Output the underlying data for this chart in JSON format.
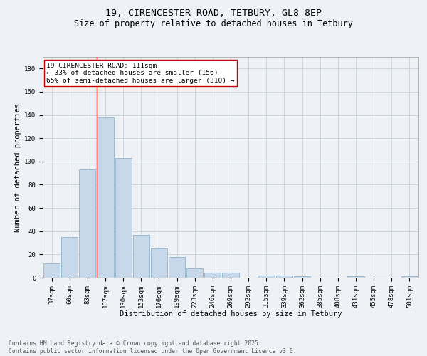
{
  "title_line1": "19, CIRENCESTER ROAD, TETBURY, GL8 8EP",
  "title_line2": "Size of property relative to detached houses in Tetbury",
  "xlabel": "Distribution of detached houses by size in Tetbury",
  "ylabel": "Number of detached properties",
  "categories": [
    "37sqm",
    "60sqm",
    "83sqm",
    "107sqm",
    "130sqm",
    "153sqm",
    "176sqm",
    "199sqm",
    "223sqm",
    "246sqm",
    "269sqm",
    "292sqm",
    "315sqm",
    "339sqm",
    "362sqm",
    "385sqm",
    "408sqm",
    "431sqm",
    "455sqm",
    "478sqm",
    "501sqm"
  ],
  "values": [
    12,
    35,
    93,
    138,
    103,
    37,
    25,
    18,
    8,
    4,
    4,
    0,
    2,
    2,
    1,
    0,
    0,
    1,
    0,
    0,
    1
  ],
  "bar_color": "#c8d8eb",
  "bar_edge_color": "#90b4cc",
  "ylim": [
    0,
    190
  ],
  "yticks": [
    0,
    20,
    40,
    60,
    80,
    100,
    120,
    140,
    160,
    180
  ],
  "annotation_text_line1": "19 CIRENCESTER ROAD: 111sqm",
  "annotation_text_line2": "← 33% of detached houses are smaller (156)",
  "annotation_text_line3": "65% of semi-detached houses are larger (310) →",
  "annotation_box_color": "#ffffff",
  "annotation_border_color": "#cc0000",
  "vline_color": "#cc0000",
  "grid_color": "#c8d0d8",
  "background_color": "#eef2f6",
  "footer_line1": "Contains HM Land Registry data © Crown copyright and database right 2025.",
  "footer_line2": "Contains public sector information licensed under the Open Government Licence v3.0.",
  "title_fontsize": 9.5,
  "subtitle_fontsize": 8.5,
  "axis_label_fontsize": 7.5,
  "tick_fontsize": 6.5,
  "annotation_fontsize": 6.8,
  "footer_fontsize": 5.8
}
